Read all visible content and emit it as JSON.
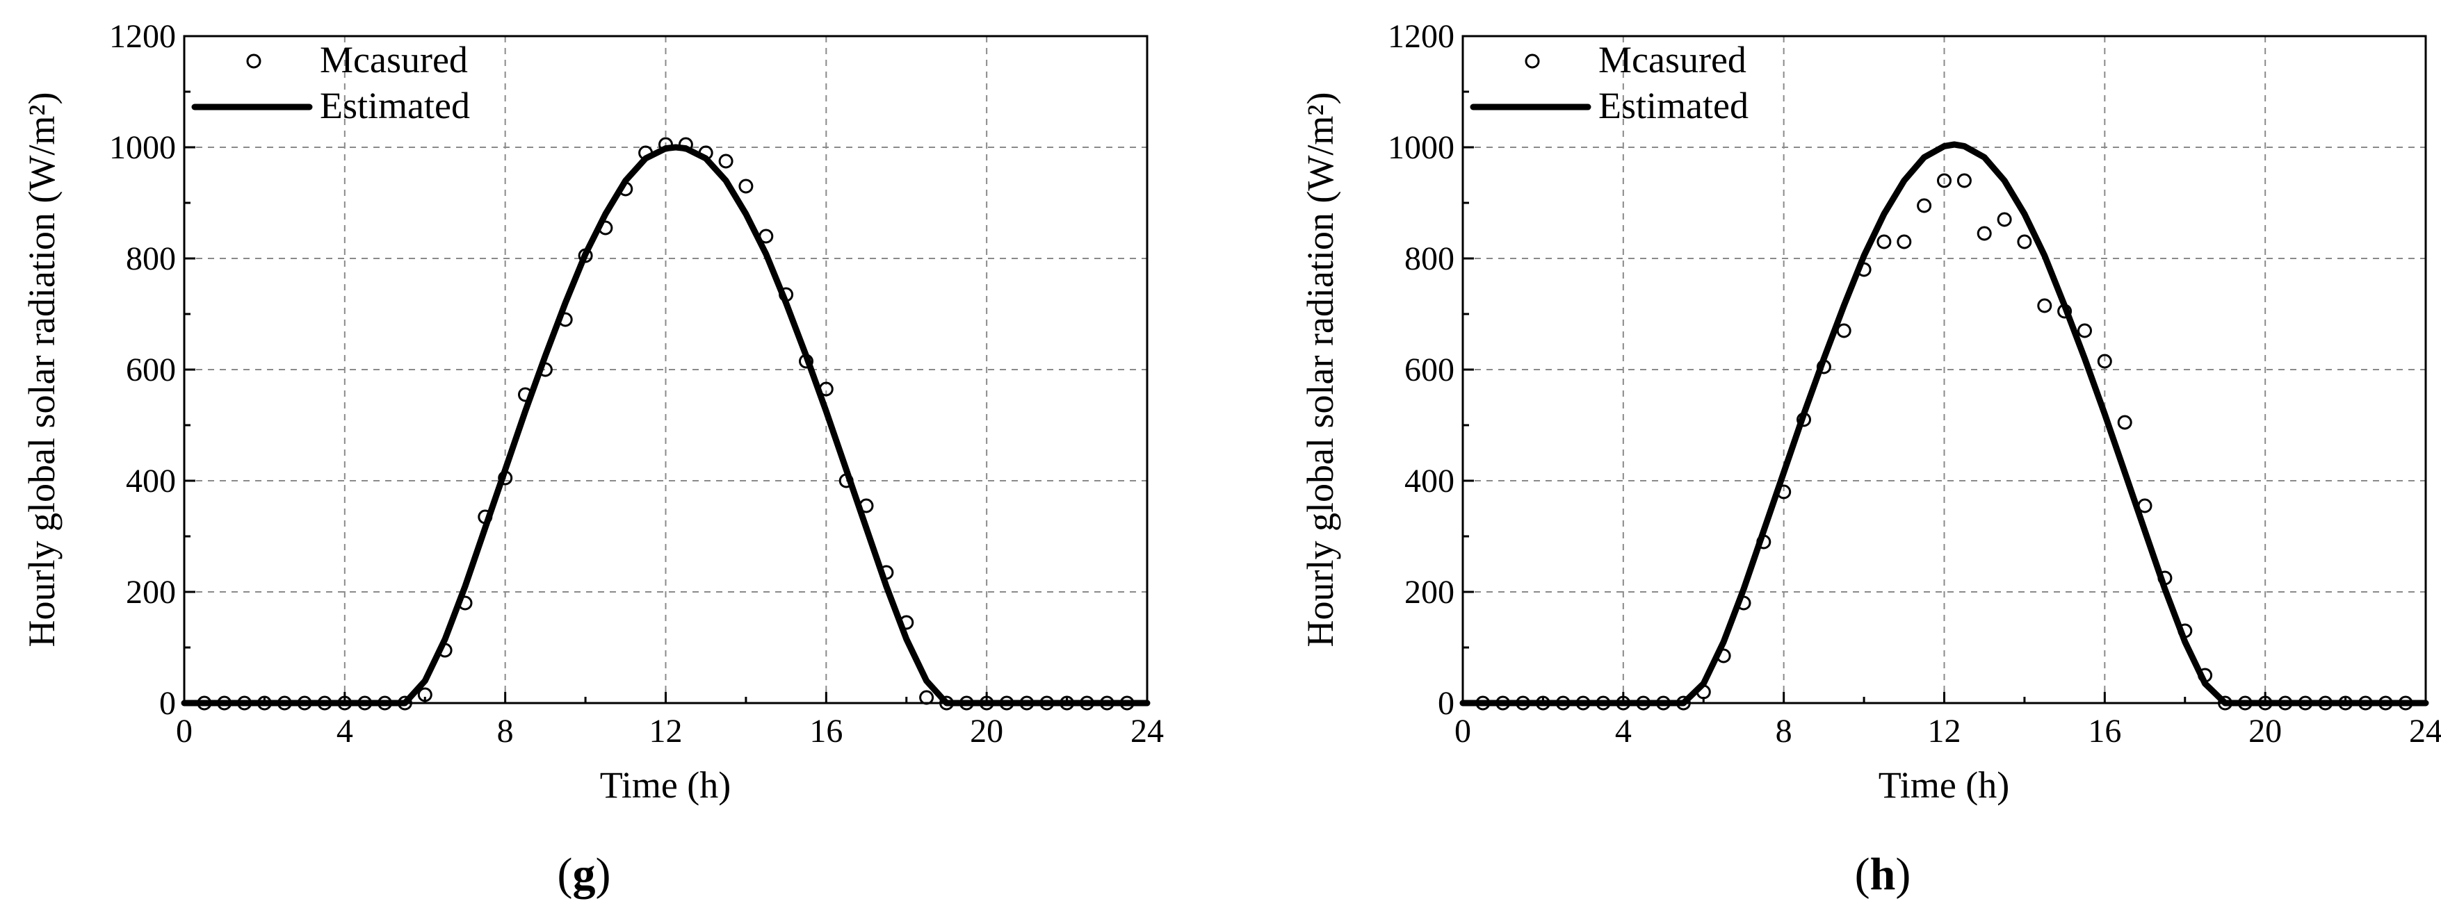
{
  "chart_data": [
    {
      "panel": "g",
      "type": "scatter",
      "xlabel": "Time (h)",
      "ylabel": "Hourly global solar radiation (W/m²)",
      "xlim": [
        0,
        24
      ],
      "ylim": [
        0,
        1200
      ],
      "xticks": [
        0,
        4,
        8,
        12,
        16,
        20,
        24
      ],
      "yticks": [
        0,
        200,
        400,
        600,
        800,
        1000,
        1200
      ],
      "grid": true,
      "legend_placement": "top-left",
      "series": [
        {
          "name": "Mcasured",
          "type": "scatter",
          "marker": "open-circle",
          "x": [
            0.5,
            1,
            1.5,
            2,
            2.5,
            3,
            3.5,
            4,
            4.5,
            5,
            5.5,
            6,
            6.5,
            7,
            7.5,
            8,
            8.5,
            9,
            9.5,
            10,
            10.5,
            11,
            11.5,
            12,
            12.5,
            13,
            13.5,
            14,
            14.5,
            15,
            15.5,
            16,
            16.5,
            17,
            17.5,
            18,
            18.5,
            19,
            19.5,
            20,
            20.5,
            21,
            21.5,
            22,
            22.5,
            23,
            23.5
          ],
          "y": [
            0,
            0,
            0,
            0,
            0,
            0,
            0,
            0,
            0,
            0,
            0,
            15,
            95,
            180,
            335,
            405,
            555,
            600,
            690,
            805,
            855,
            925,
            990,
            1005,
            1005,
            990,
            975,
            930,
            840,
            735,
            615,
            565,
            400,
            355,
            235,
            145,
            10,
            0,
            0,
            0,
            0,
            0,
            0,
            0,
            0,
            0,
            0
          ]
        },
        {
          "name": "Estimated",
          "type": "line",
          "x": [
            5.5,
            6,
            6.5,
            7,
            7.5,
            8,
            8.5,
            9,
            9.5,
            10,
            10.5,
            11,
            11.5,
            12,
            12.25,
            12.5,
            13,
            13.5,
            14,
            14.5,
            15,
            15.5,
            16,
            16.5,
            17,
            17.5,
            18,
            18.5,
            19
          ],
          "y": [
            0,
            40,
            115,
            210,
            315,
            420,
            525,
            625,
            720,
            808,
            880,
            940,
            980,
            998,
            1000,
            998,
            980,
            940,
            880,
            808,
            720,
            625,
            525,
            420,
            315,
            210,
            115,
            40,
            0
          ]
        }
      ]
    },
    {
      "panel": "h",
      "type": "scatter",
      "xlabel": "Time (h)",
      "ylabel": "Hourly global solar radiation (W/m²)",
      "xlim": [
        0,
        24
      ],
      "ylim": [
        0,
        1200
      ],
      "xticks": [
        0,
        4,
        8,
        12,
        16,
        20,
        24
      ],
      "yticks": [
        0,
        200,
        400,
        600,
        800,
        1000,
        1200
      ],
      "grid": true,
      "legend_placement": "top-left",
      "series": [
        {
          "name": "Mcasured",
          "type": "scatter",
          "marker": "open-circle",
          "x": [
            0.5,
            1,
            1.5,
            2,
            2.5,
            3,
            3.5,
            4,
            4.5,
            5,
            5.5,
            6,
            6.5,
            7,
            7.5,
            8,
            8.5,
            9,
            9.5,
            10,
            10.5,
            11,
            11.5,
            12,
            12.5,
            13,
            13.5,
            14,
            14.5,
            15,
            15.5,
            16,
            16.5,
            17,
            17.5,
            18,
            18.5,
            19,
            19.5,
            20,
            20.5,
            21,
            21.5,
            22,
            22.5,
            23,
            23.5
          ],
          "y": [
            0,
            0,
            0,
            0,
            0,
            0,
            0,
            0,
            0,
            0,
            0,
            20,
            85,
            180,
            290,
            380,
            510,
            605,
            670,
            780,
            830,
            830,
            895,
            940,
            940,
            845,
            870,
            830,
            715,
            705,
            670,
            615,
            505,
            355,
            225,
            130,
            50,
            0,
            0,
            0,
            0,
            0,
            0,
            0,
            0,
            0,
            0
          ]
        },
        {
          "name": "Estimated",
          "type": "line",
          "x": [
            5.5,
            6,
            6.5,
            7,
            7.5,
            8,
            8.5,
            9,
            9.5,
            10,
            10.5,
            11,
            11.5,
            12,
            12.25,
            12.5,
            13,
            13.5,
            14,
            14.5,
            15,
            15.5,
            16,
            16.5,
            17,
            17.5,
            18,
            18.5,
            19
          ],
          "y": [
            0,
            35,
            110,
            205,
            310,
            415,
            520,
            620,
            715,
            805,
            880,
            940,
            982,
            1002,
            1005,
            1002,
            982,
            940,
            880,
            805,
            715,
            620,
            520,
            415,
            310,
            205,
            110,
            35,
            0
          ]
        }
      ]
    }
  ]
}
